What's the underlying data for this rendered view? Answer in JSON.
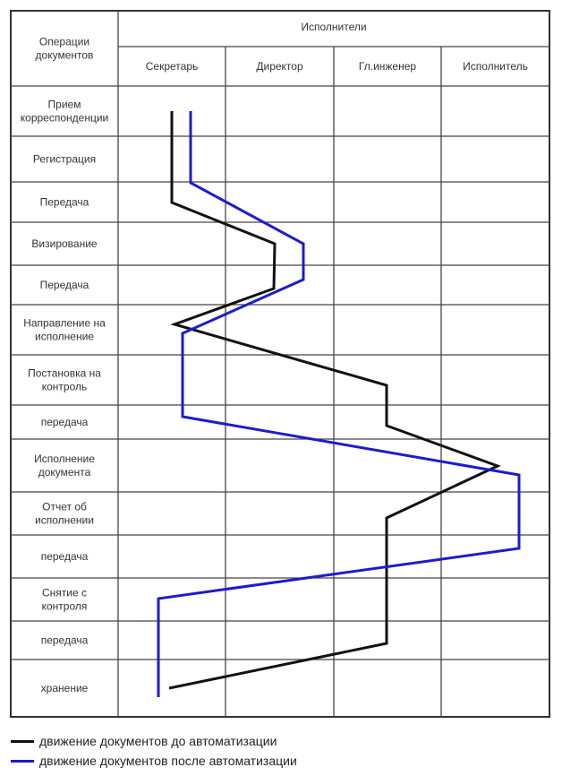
{
  "header": {
    "operations_label": "Операции документов",
    "operations_lines": [
      "Операции",
      "документов"
    ],
    "performers_label": "Исполнители"
  },
  "columns": [
    "Секретарь",
    "Директор",
    "Гл.инженер",
    "Исполнитель"
  ],
  "operations": [
    [
      "Прием",
      "корреспонденции"
    ],
    [
      "Регистрация"
    ],
    [
      "Передача"
    ],
    [
      "Визирование"
    ],
    [
      "Передача"
    ],
    [
      "Направление на",
      "исполнение"
    ],
    [
      "Постановка на",
      "контроль"
    ],
    [
      "передача"
    ],
    [
      "Исполнение",
      "документа"
    ],
    [
      "Отчет об",
      "исполнении"
    ],
    [
      "передача"
    ],
    [
      "Снятие с",
      "контроля"
    ],
    [
      "передача"
    ],
    [
      "хранение"
    ]
  ],
  "legend": {
    "before": {
      "label": "движение документов до автоматизации",
      "color": "#111111"
    },
    "after": {
      "label": "движение документов после автоматизации",
      "color": "#1c1ccc"
    }
  }
}
